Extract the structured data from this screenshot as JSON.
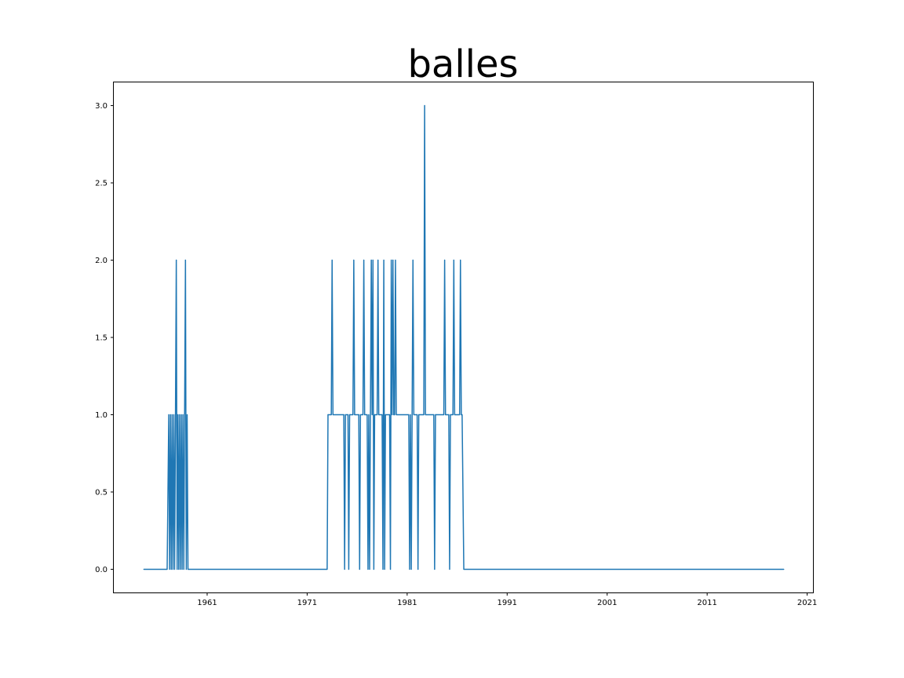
{
  "chart_data": {
    "type": "line",
    "title": "balles",
    "xlabel": "",
    "ylabel": "",
    "x_axis_kind": "date",
    "xlim": [
      "1951-09-01",
      "2021-08-01"
    ],
    "ylim": [
      -0.15,
      3.15
    ],
    "xticks": [
      "1961",
      "1971",
      "1981",
      "1991",
      "2001",
      "2011",
      "2021"
    ],
    "yticks": [
      "0.0",
      "0.5",
      "1.0",
      "1.5",
      "2.0",
      "2.5",
      "3.0"
    ],
    "grid": false,
    "legend": "none",
    "series": [
      {
        "color": "#1f77b4",
        "points": [
          [
            "1954-09-01",
            0
          ],
          [
            "1957-01-01",
            0
          ],
          [
            "1957-03-01",
            1
          ],
          [
            "1957-04-01",
            0
          ],
          [
            "1957-05-01",
            1
          ],
          [
            "1957-06-01",
            0
          ],
          [
            "1957-07-01",
            1
          ],
          [
            "1957-08-01",
            0
          ],
          [
            "1957-09-01",
            1
          ],
          [
            "1957-10-01",
            0
          ],
          [
            "1957-11-01",
            1
          ],
          [
            "1957-12-01",
            2
          ],
          [
            "1958-01-01",
            0
          ],
          [
            "1958-02-01",
            1
          ],
          [
            "1958-03-01",
            0
          ],
          [
            "1958-04-01",
            1
          ],
          [
            "1958-05-01",
            0
          ],
          [
            "1958-06-01",
            1
          ],
          [
            "1958-07-01",
            0
          ],
          [
            "1958-08-01",
            1
          ],
          [
            "1958-09-01",
            0
          ],
          [
            "1958-10-01",
            1
          ],
          [
            "1958-11-01",
            2
          ],
          [
            "1958-12-01",
            0
          ],
          [
            "1959-01-01",
            1
          ],
          [
            "1959-02-01",
            0
          ],
          [
            "1973-01-01",
            0
          ],
          [
            "1973-02-01",
            1
          ],
          [
            "1973-06-01",
            1
          ],
          [
            "1973-07-01",
            2
          ],
          [
            "1973-08-01",
            1
          ],
          [
            "1974-09-01",
            1
          ],
          [
            "1974-10-01",
            0
          ],
          [
            "1974-11-01",
            1
          ],
          [
            "1975-02-01",
            1
          ],
          [
            "1975-03-01",
            0
          ],
          [
            "1975-04-01",
            1
          ],
          [
            "1975-08-01",
            1
          ],
          [
            "1975-09-01",
            2
          ],
          [
            "1975-10-01",
            1
          ],
          [
            "1976-03-01",
            1
          ],
          [
            "1976-04-01",
            0
          ],
          [
            "1976-05-01",
            1
          ],
          [
            "1976-08-01",
            1
          ],
          [
            "1976-09-01",
            2
          ],
          [
            "1976-10-01",
            1
          ],
          [
            "1977-01-01",
            1
          ],
          [
            "1977-02-01",
            0
          ],
          [
            "1977-03-01",
            1
          ],
          [
            "1977-04-01",
            0
          ],
          [
            "1977-05-01",
            1
          ],
          [
            "1977-06-01",
            2
          ],
          [
            "1977-07-01",
            1
          ],
          [
            "1977-08-01",
            2
          ],
          [
            "1977-09-01",
            0
          ],
          [
            "1977-10-01",
            1
          ],
          [
            "1978-01-01",
            1
          ],
          [
            "1978-02-01",
            2
          ],
          [
            "1978-03-01",
            1
          ],
          [
            "1978-07-01",
            1
          ],
          [
            "1978-08-01",
            0
          ],
          [
            "1978-09-01",
            2
          ],
          [
            "1978-10-01",
            0
          ],
          [
            "1978-11-01",
            1
          ],
          [
            "1979-04-01",
            1
          ],
          [
            "1979-05-01",
            0
          ],
          [
            "1979-06-01",
            2
          ],
          [
            "1979-07-01",
            1
          ],
          [
            "1979-08-01",
            2
          ],
          [
            "1979-09-01",
            1
          ],
          [
            "1979-10-01",
            1
          ],
          [
            "1979-11-01",
            2
          ],
          [
            "1979-12-01",
            1
          ],
          [
            "1981-03-01",
            1
          ],
          [
            "1981-04-01",
            0
          ],
          [
            "1981-05-01",
            1
          ],
          [
            "1981-06-01",
            0
          ],
          [
            "1981-07-01",
            1
          ],
          [
            "1981-08-01",
            2
          ],
          [
            "1981-09-01",
            1
          ],
          [
            "1982-01-01",
            1
          ],
          [
            "1982-02-01",
            0
          ],
          [
            "1982-03-01",
            1
          ],
          [
            "1982-09-01",
            1
          ],
          [
            "1982-10-01",
            3
          ],
          [
            "1982-11-01",
            1
          ],
          [
            "1983-09-01",
            1
          ],
          [
            "1983-10-01",
            0
          ],
          [
            "1983-11-01",
            1
          ],
          [
            "1984-09-01",
            1
          ],
          [
            "1984-10-01",
            2
          ],
          [
            "1984-11-01",
            1
          ],
          [
            "1985-03-01",
            1
          ],
          [
            "1985-04-01",
            0
          ],
          [
            "1985-05-01",
            1
          ],
          [
            "1985-08-01",
            1
          ],
          [
            "1985-09-01",
            2
          ],
          [
            "1985-10-01",
            1
          ],
          [
            "1986-04-01",
            1
          ],
          [
            "1986-05-01",
            2
          ],
          [
            "1986-06-01",
            1
          ],
          [
            "1986-07-01",
            1
          ],
          [
            "1986-09-01",
            0
          ],
          [
            "2018-09-01",
            0
          ]
        ]
      }
    ]
  }
}
